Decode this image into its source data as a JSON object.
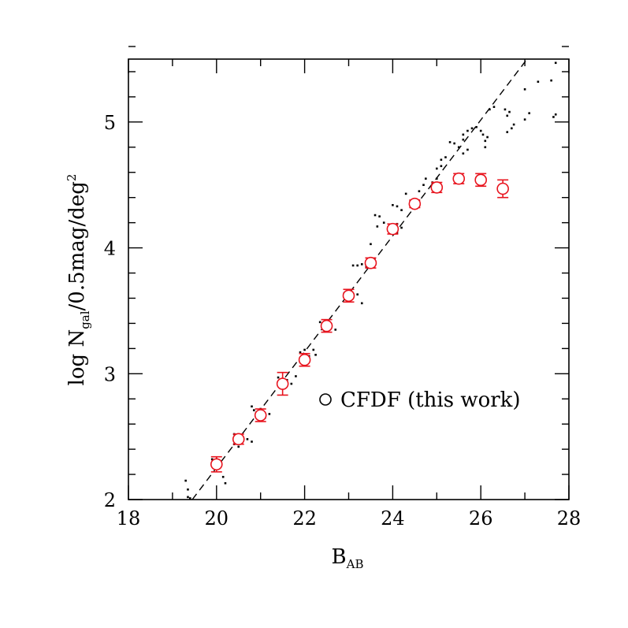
{
  "chart_data": {
    "type": "scatter",
    "title": "",
    "xlabel": "B",
    "xlabel_sub": "AB",
    "ylabel": "log N",
    "ylabel_sub": "gal",
    "ylabel_rest": "/0.5mag/deg",
    "ylabel_sup": "2",
    "xlim": [
      18,
      28
    ],
    "ylim": [
      2,
      5.5
    ],
    "xticks": [
      "18",
      "20",
      "22",
      "24",
      "26",
      "28"
    ],
    "yticks": [
      "2",
      "3",
      "4",
      "5"
    ],
    "legend": {
      "label": "CFDF (this work)",
      "symbol": "open-circle",
      "color": "#000000"
    },
    "colors": {
      "cfdf": "#e8141e",
      "literature": "#000000",
      "fit": "#000000"
    },
    "series": [
      {
        "name": "CFDF (this work)",
        "style": "open-circle-errorbar",
        "points": [
          {
            "x": 20.0,
            "y": 2.28,
            "err": 0.06
          },
          {
            "x": 20.5,
            "y": 2.48,
            "err": 0.04
          },
          {
            "x": 21.0,
            "y": 2.67,
            "err": 0.05
          },
          {
            "x": 21.5,
            "y": 2.92,
            "err": 0.09
          },
          {
            "x": 22.0,
            "y": 3.11,
            "err": 0.05
          },
          {
            "x": 22.5,
            "y": 3.38,
            "err": 0.05
          },
          {
            "x": 23.0,
            "y": 3.62,
            "err": 0.05
          },
          {
            "x": 23.5,
            "y": 3.88,
            "err": 0.04
          },
          {
            "x": 24.0,
            "y": 4.15,
            "err": 0.04
          },
          {
            "x": 24.5,
            "y": 4.35,
            "err": 0.03
          },
          {
            "x": 25.0,
            "y": 4.48,
            "err": 0.04
          },
          {
            "x": 25.5,
            "y": 4.55,
            "err": 0.04
          },
          {
            "x": 26.0,
            "y": 4.54,
            "err": 0.05
          },
          {
            "x": 26.5,
            "y": 4.47,
            "err": 0.07
          }
        ]
      },
      {
        "style": "dots",
        "points": [
          [
            19.3,
            2.15
          ],
          [
            19.35,
            2.08
          ],
          [
            19.35,
            2.02
          ],
          [
            19.4,
            2.01
          ],
          [
            19.9,
            2.32
          ],
          [
            19.95,
            2.3
          ],
          [
            20.0,
            2.25
          ],
          [
            20.15,
            2.18
          ],
          [
            20.2,
            2.13
          ],
          [
            20.4,
            2.52
          ],
          [
            20.45,
            2.48
          ],
          [
            20.4,
            2.44
          ],
          [
            20.5,
            2.42
          ],
          [
            20.7,
            2.48
          ],
          [
            20.8,
            2.46
          ],
          [
            20.8,
            2.74
          ],
          [
            20.85,
            2.71
          ],
          [
            20.9,
            2.69
          ],
          [
            21.0,
            2.72
          ],
          [
            21.1,
            2.65
          ],
          [
            21.2,
            2.68
          ],
          [
            21.5,
            2.94
          ],
          [
            21.6,
            2.95
          ],
          [
            21.7,
            2.92
          ],
          [
            21.4,
            2.97
          ],
          [
            21.8,
            2.98
          ],
          [
            22.0,
            3.19
          ],
          [
            21.9,
            3.17
          ],
          [
            22.1,
            3.14
          ],
          [
            22.2,
            3.19
          ],
          [
            22.25,
            3.15
          ],
          [
            22.35,
            3.41
          ],
          [
            22.4,
            3.38
          ],
          [
            22.45,
            3.34
          ],
          [
            22.6,
            3.37
          ],
          [
            22.7,
            3.35
          ],
          [
            22.9,
            3.64
          ],
          [
            22.95,
            3.62
          ],
          [
            23.0,
            3.59
          ],
          [
            23.1,
            3.61
          ],
          [
            23.3,
            3.56
          ],
          [
            23.2,
            3.63
          ],
          [
            23.1,
            3.86
          ],
          [
            23.2,
            3.86
          ],
          [
            23.3,
            3.87
          ],
          [
            23.5,
            4.03
          ],
          [
            23.4,
            3.85
          ],
          [
            23.6,
            4.26
          ],
          [
            23.7,
            4.25
          ],
          [
            23.8,
            4.2
          ],
          [
            23.65,
            4.17
          ],
          [
            24.1,
            4.19
          ],
          [
            24.2,
            4.16
          ],
          [
            24.1,
            4.12
          ],
          [
            24.0,
            4.34
          ],
          [
            24.1,
            4.33
          ],
          [
            24.2,
            4.3
          ],
          [
            24.3,
            4.43
          ],
          [
            24.4,
            4.37
          ],
          [
            24.6,
            4.45
          ],
          [
            24.7,
            4.5
          ],
          [
            24.75,
            4.55
          ],
          [
            24.9,
            4.52
          ],
          [
            25.0,
            4.55
          ],
          [
            25.1,
            4.7
          ],
          [
            25.2,
            4.72
          ],
          [
            25.3,
            4.84
          ],
          [
            25.4,
            4.83
          ],
          [
            25.0,
            4.63
          ],
          [
            25.1,
            4.65
          ],
          [
            25.5,
            4.8
          ],
          [
            25.6,
            4.86
          ],
          [
            25.6,
            4.9
          ],
          [
            25.7,
            4.93
          ],
          [
            25.8,
            4.95
          ],
          [
            25.9,
            4.96
          ],
          [
            25.6,
            4.75
          ],
          [
            25.7,
            4.78
          ],
          [
            26.0,
            4.93
          ],
          [
            26.05,
            4.9
          ],
          [
            26.1,
            4.8
          ],
          [
            26.1,
            4.85
          ],
          [
            26.15,
            4.88
          ],
          [
            26.2,
            5.1
          ],
          [
            26.3,
            5.12
          ],
          [
            26.55,
            5.1
          ],
          [
            26.6,
            5.05
          ],
          [
            26.65,
            5.08
          ],
          [
            26.6,
            4.92
          ],
          [
            26.7,
            4.95
          ],
          [
            26.75,
            4.98
          ],
          [
            27.0,
            5.02
          ],
          [
            27.1,
            5.07
          ],
          [
            27.0,
            5.26
          ],
          [
            27.3,
            5.32
          ],
          [
            27.6,
            5.33
          ],
          [
            27.7,
            5.47
          ],
          [
            27.65,
            5.04
          ],
          [
            27.7,
            5.06
          ]
        ]
      },
      {
        "style": "dashed-line",
        "points": [
          [
            19.45,
            2.0
          ],
          [
            27.05,
            5.5
          ]
        ]
      }
    ]
  }
}
